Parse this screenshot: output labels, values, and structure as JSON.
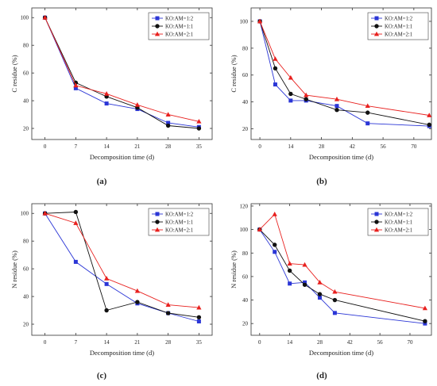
{
  "chart_data": [
    {
      "panel_label": "(a)",
      "type": "line",
      "xlabel": "Decomposition time (d)",
      "ylabel": "C residue (%)",
      "xlim": [
        -3,
        38
      ],
      "ylim": [
        12,
        107
      ],
      "xticks": [
        0,
        7,
        14,
        21,
        28,
        35
      ],
      "yticks": [
        20,
        40,
        60,
        80,
        100
      ],
      "legend_position": "top-right",
      "series": [
        {
          "name": "KO:AM=1:2",
          "color": "#2b36d6",
          "marker": "square",
          "x": [
            0,
            7,
            14,
            21,
            28,
            35
          ],
          "y": [
            100,
            49,
            38,
            34,
            24,
            21
          ]
        },
        {
          "name": "KO:AM=1:1",
          "color": "#111111",
          "marker": "circle",
          "x": [
            0,
            7,
            14,
            21,
            28,
            35
          ],
          "y": [
            100,
            53,
            43,
            35,
            22,
            20
          ]
        },
        {
          "name": "KO:AM=2:1",
          "color": "#e8201e",
          "marker": "triangle",
          "x": [
            0,
            7,
            14,
            21,
            28,
            35
          ],
          "y": [
            100,
            51,
            45,
            37,
            30,
            25
          ]
        }
      ]
    },
    {
      "panel_label": "(b)",
      "type": "line",
      "xlabel": "Decomposition time (d)",
      "ylabel": "C residue (%)",
      "xlim": [
        -4,
        78
      ],
      "ylim": [
        12,
        110
      ],
      "xticks": [
        0,
        14,
        28,
        42,
        56,
        70
      ],
      "yticks": [
        20,
        40,
        60,
        80,
        100
      ],
      "legend_position": "top-right",
      "series": [
        {
          "name": "KO:AM=1:2",
          "color": "#2b36d6",
          "marker": "square",
          "x": [
            0,
            7,
            14,
            21,
            35,
            49,
            77
          ],
          "y": [
            100,
            53,
            41,
            41,
            37,
            24,
            22
          ]
        },
        {
          "name": "KO:AM=1:1",
          "color": "#111111",
          "marker": "circle",
          "x": [
            0,
            7,
            14,
            21,
            35,
            49,
            77
          ],
          "y": [
            100,
            65,
            46,
            42,
            34,
            32,
            23
          ]
        },
        {
          "name": "KO:AM=2:1",
          "color": "#e8201e",
          "marker": "triangle",
          "x": [
            0,
            7,
            14,
            21,
            35,
            49,
            77
          ],
          "y": [
            100,
            72,
            58,
            45,
            42,
            37,
            30
          ]
        }
      ]
    },
    {
      "panel_label": "(c)",
      "type": "line",
      "xlabel": "Decomposition time (d)",
      "ylabel": "N residue (%)",
      "xlim": [
        -3,
        38
      ],
      "ylim": [
        12,
        107
      ],
      "xticks": [
        0,
        7,
        14,
        21,
        28,
        35
      ],
      "yticks": [
        20,
        40,
        60,
        80,
        100
      ],
      "legend_position": "top-right",
      "series": [
        {
          "name": "KO:AM=1:2",
          "color": "#2b36d6",
          "marker": "square",
          "x": [
            0,
            7,
            14,
            21,
            28,
            35
          ],
          "y": [
            100,
            65,
            49,
            35,
            28,
            22
          ]
        },
        {
          "name": "KO:AM=1:1",
          "color": "#111111",
          "marker": "circle",
          "x": [
            0,
            7,
            14,
            21,
            28,
            35
          ],
          "y": [
            100,
            101,
            30,
            36,
            28,
            25
          ]
        },
        {
          "name": "KO:AM=2:1",
          "color": "#e8201e",
          "marker": "triangle",
          "x": [
            0,
            7,
            14,
            21,
            28,
            35
          ],
          "y": [
            100,
            93,
            53,
            44,
            34,
            32
          ]
        }
      ]
    },
    {
      "panel_label": "(d)",
      "type": "line",
      "xlabel": "Decomposition time (d)",
      "ylabel": "N residue (%)",
      "xlim": [
        -4,
        80
      ],
      "ylim": [
        10,
        122
      ],
      "xticks": [
        0,
        14,
        28,
        42,
        56,
        70
      ],
      "yticks": [
        20,
        40,
        60,
        80,
        100,
        120
      ],
      "legend_position": "top-right",
      "series": [
        {
          "name": "KO:AM=1:2",
          "color": "#2b36d6",
          "marker": "square",
          "x": [
            0,
            7,
            14,
            21,
            28,
            35,
            77
          ],
          "y": [
            100,
            81,
            54,
            55,
            42,
            29,
            20
          ]
        },
        {
          "name": "KO:AM=1:1",
          "color": "#111111",
          "marker": "circle",
          "x": [
            0,
            7,
            14,
            21,
            28,
            35,
            77
          ],
          "y": [
            100,
            87,
            65,
            53,
            45,
            40,
            22
          ]
        },
        {
          "name": "KO:AM=2:1",
          "color": "#e8201e",
          "marker": "triangle",
          "x": [
            0,
            7,
            14,
            21,
            28,
            35,
            77
          ],
          "y": [
            100,
            113,
            71,
            70,
            55,
            47,
            33
          ]
        }
      ]
    }
  ]
}
